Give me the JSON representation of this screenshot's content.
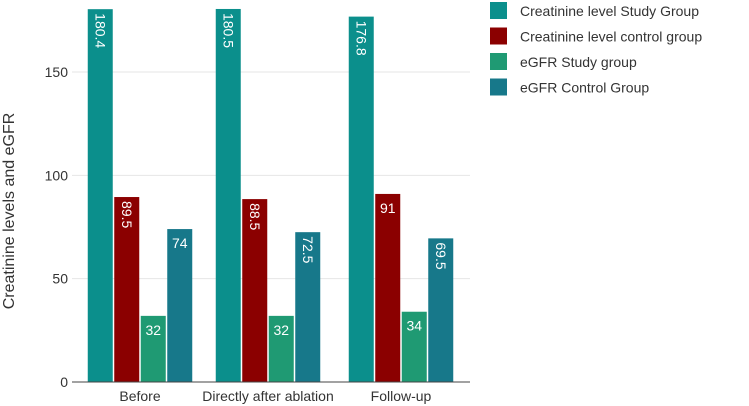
{
  "chart_data": {
    "type": "bar",
    "categories": [
      "Before",
      "Directly after ablation",
      "Follow-up"
    ],
    "series": [
      {
        "name": "Creatinine level Study Group",
        "color": "#0b8f8c",
        "values": [
          180.4,
          180.5,
          176.8
        ],
        "labels": [
          "180.4",
          "180.5",
          "176.8"
        ],
        "label_rotation": "vertical"
      },
      {
        "name": "Creatinine level control group",
        "color": "#8b0000",
        "values": [
          89.5,
          88.5,
          91
        ],
        "labels": [
          "89.5",
          "88.5",
          "91"
        ],
        "label_rotation": "mixed"
      },
      {
        "name": "eGFR Study group",
        "color": "#1f9a73",
        "values": [
          32,
          32,
          34
        ],
        "labels": [
          "32",
          "32",
          "34"
        ],
        "label_rotation": "horizontal"
      },
      {
        "name": "eGFR Control Group",
        "color": "#17788a",
        "values": [
          74,
          72.5,
          69.5
        ],
        "labels": [
          "74",
          "72.5",
          "69.5"
        ],
        "label_rotation": "mixed"
      }
    ],
    "title": "",
    "xlabel": "",
    "ylabel": "Creatinine levels and eGFR",
    "ylim": [
      0,
      180
    ],
    "yticks": [
      0,
      50,
      100,
      150
    ],
    "grid": true,
    "legend_position": "top-right"
  }
}
